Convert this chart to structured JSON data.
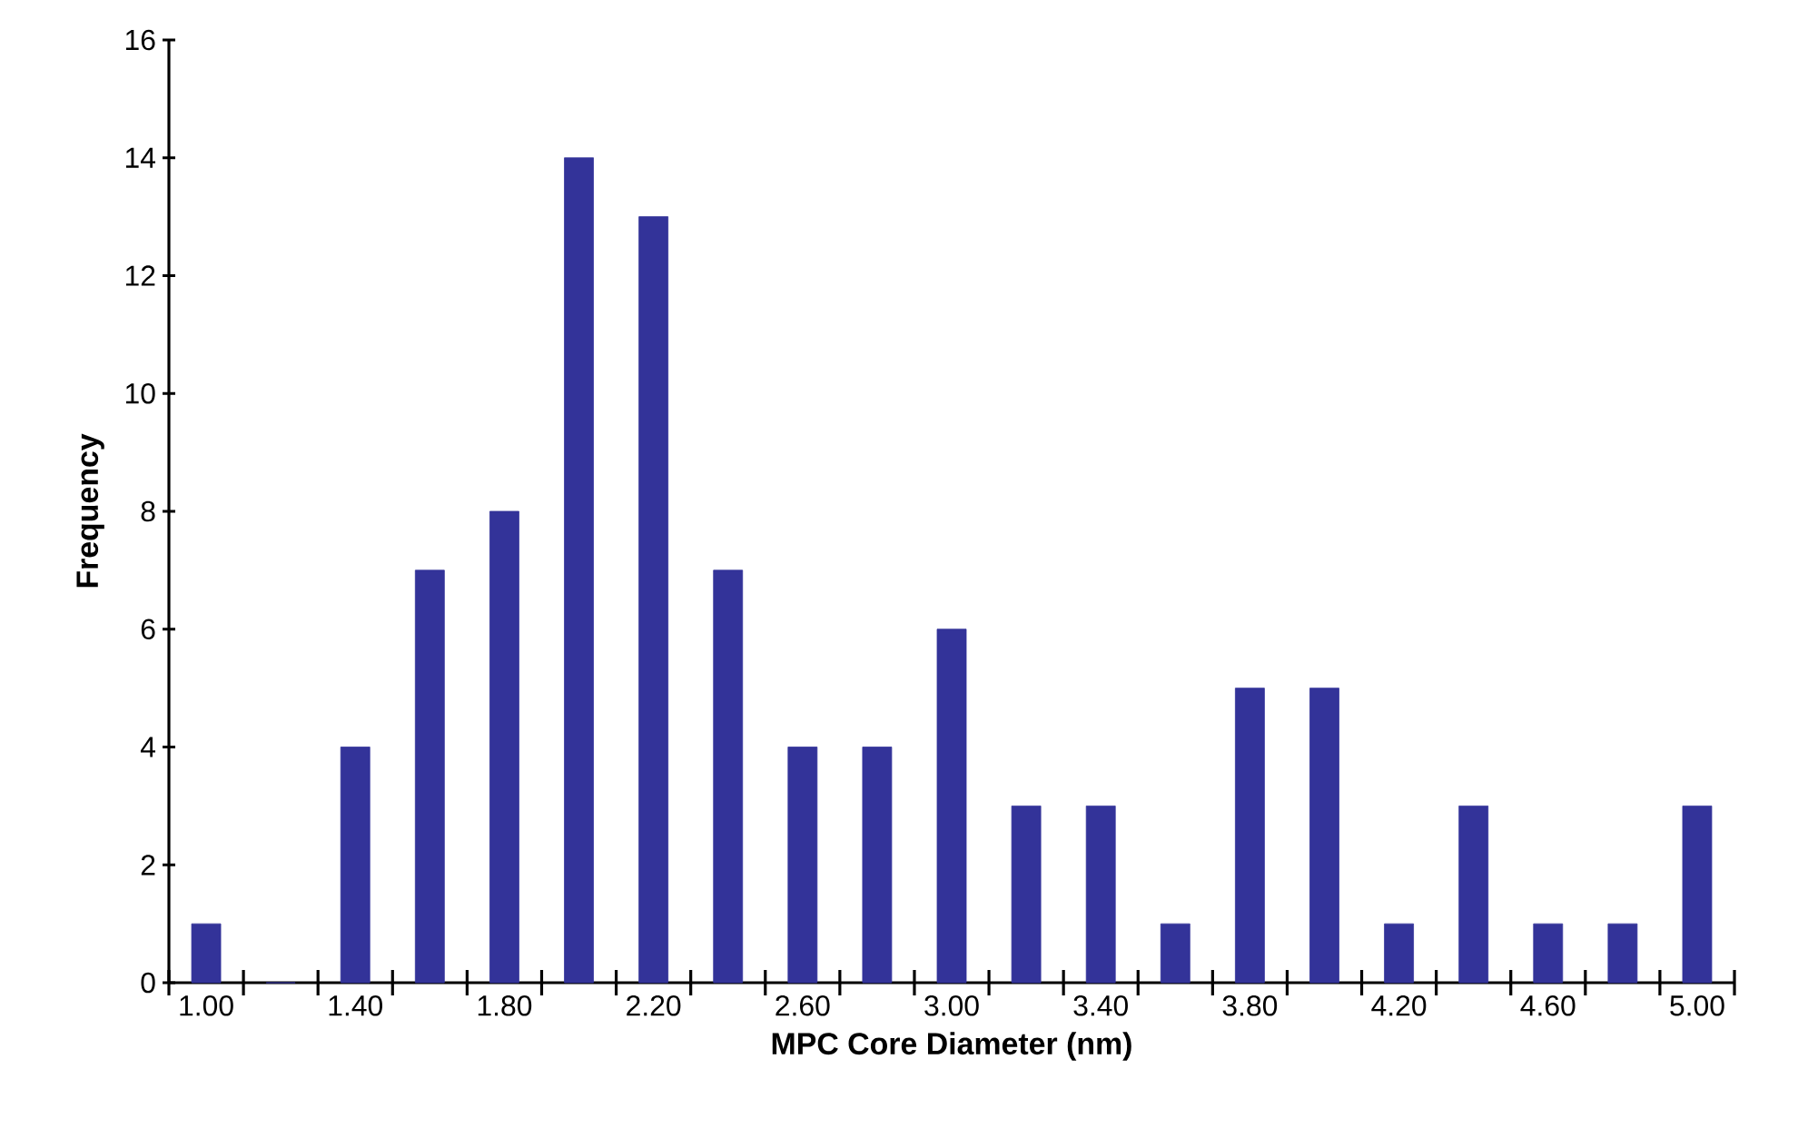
{
  "chart_data": {
    "type": "bar",
    "xlabel": "MPC Core Diameter (nm)",
    "ylabel": "Frequency",
    "categories": [
      "1.00",
      null,
      "1.40",
      null,
      "1.80",
      null,
      "2.20",
      null,
      "2.60",
      null,
      "3.00",
      null,
      "3.40",
      null,
      "3.80",
      null,
      "4.20",
      null,
      "4.60",
      null,
      "5.00"
    ],
    "values": [
      1,
      0,
      4,
      7,
      8,
      14,
      13,
      7,
      4,
      4,
      6,
      3,
      3,
      1,
      5,
      5,
      1,
      3,
      1,
      1,
      3
    ],
    "color": "#333399",
    "ylim": [
      0,
      16
    ],
    "yticks": [
      0,
      2,
      4,
      6,
      8,
      10,
      12,
      14,
      16
    ]
  }
}
